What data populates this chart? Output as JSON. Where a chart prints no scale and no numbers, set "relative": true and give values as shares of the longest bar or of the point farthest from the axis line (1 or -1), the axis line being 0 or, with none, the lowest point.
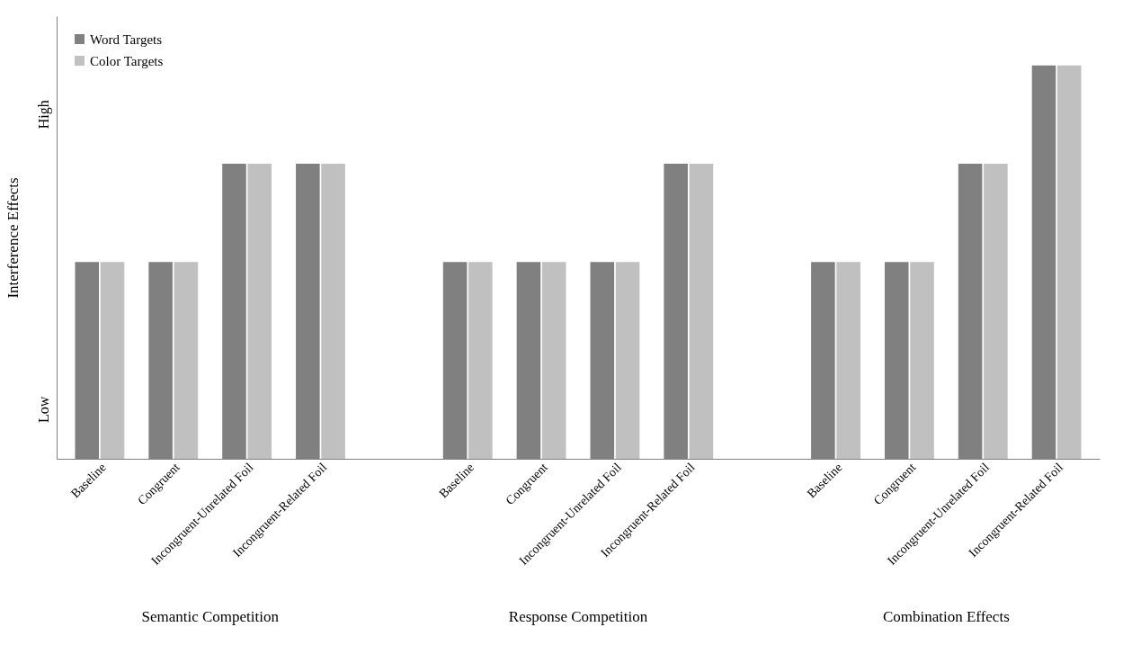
{
  "chart_data": {
    "type": "bar",
    "categories": [
      "Baseline",
      "Congruent",
      "Incongruent-Unrelated Foil",
      "Incongruent-Related Foil",
      null,
      "Baseline",
      "Congruent",
      "Incongruent-Unrelated Foil",
      "Incongruent-Related Foil",
      null,
      "Baseline",
      "Congruent",
      "Incongruent-Unrelated Foil",
      "Incongruent-Related Foil"
    ],
    "series": [
      {
        "name": "Word Targets",
        "color": "#808080",
        "values": [
          0.5,
          0.5,
          0.75,
          0.75,
          null,
          0.5,
          0.5,
          0.5,
          0.75,
          null,
          0.5,
          0.5,
          0.75,
          1
        ]
      },
      {
        "name": "Color Targets",
        "color": "#c0c0c0",
        "values": [
          0.5,
          0.5,
          0.75,
          0.75,
          null,
          0.5,
          0.5,
          0.5,
          0.75,
          null,
          0.5,
          0.5,
          0.75,
          1
        ]
      }
    ],
    "relative": true,
    "annotations": [
      "Low",
      "High",
      "Semantic Competition",
      "Response Competition",
      "Combination Effects"
    ],
    "ylabel": "Interference Effects",
    "legend": "top left"
  }
}
